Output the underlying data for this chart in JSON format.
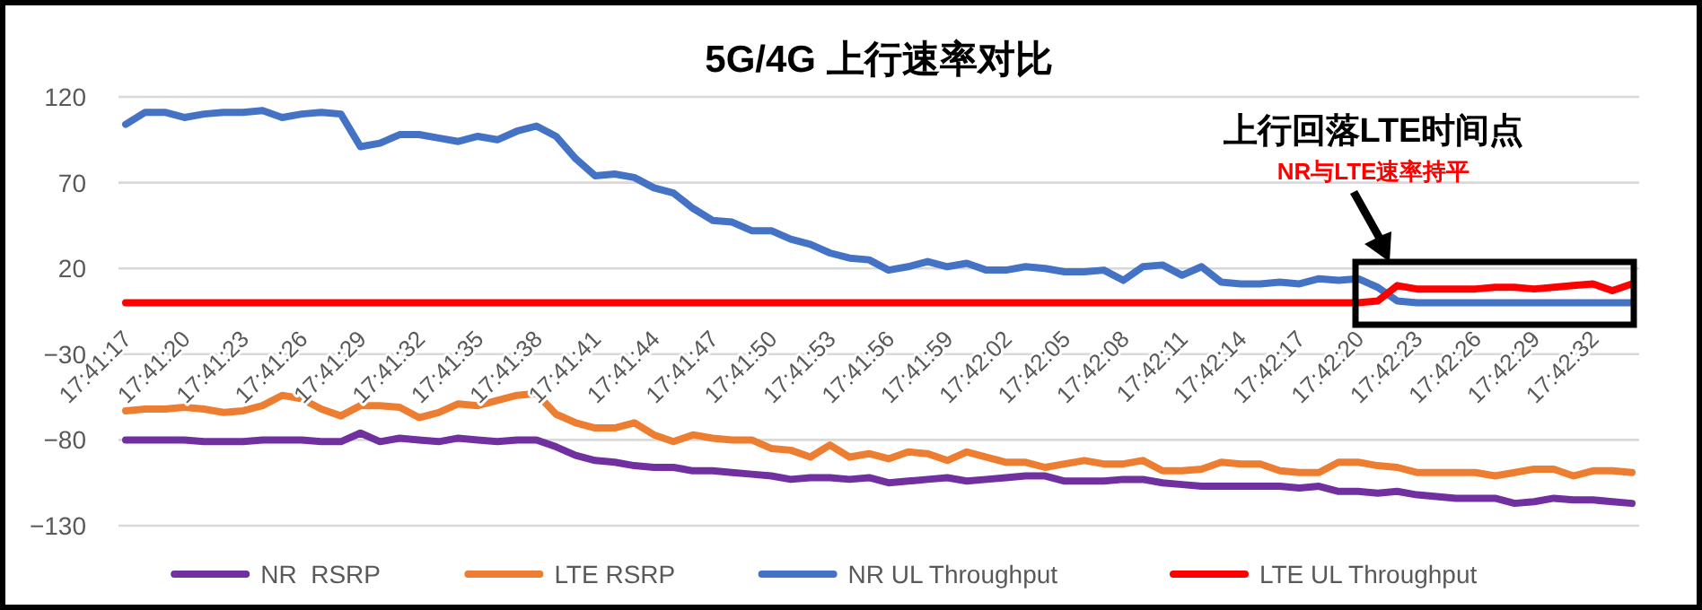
{
  "chart_data": {
    "type": "line",
    "title": "5G/4G 上行速率对比",
    "categories": [
      "17:41:17",
      null,
      null,
      "17:41:20",
      null,
      null,
      "17:41:23",
      null,
      null,
      "17:41:26",
      null,
      null,
      "17:41:29",
      null,
      null,
      "17:41:32",
      null,
      null,
      "17:41:35",
      null,
      null,
      "17:41:38",
      null,
      null,
      "17:41:41",
      null,
      null,
      "17:41:44",
      null,
      null,
      "17:41:47",
      null,
      null,
      "17:41:50",
      null,
      null,
      "17:41:53",
      null,
      null,
      "17:41:56",
      null,
      null,
      "17:41:59",
      null,
      null,
      "17:42:02",
      null,
      null,
      "17:42:05",
      null,
      null,
      "17:42:08",
      null,
      null,
      "17:42:11",
      null,
      null,
      "17:42:14",
      null,
      null,
      "17:42:17",
      null,
      null,
      "17:42:20",
      null,
      null,
      "17:42:23",
      null,
      null,
      "17:42:26",
      null,
      null,
      "17:42:29",
      null,
      null,
      "17:42:32",
      null,
      null
    ],
    "series": [
      {
        "name": "NR  RSRP",
        "color": "#7030a0",
        "values": [
          -80,
          -80,
          -80,
          -80,
          -81,
          -81,
          -81,
          -80,
          -80,
          -80,
          -81,
          -81,
          -76,
          -81,
          -79,
          -80,
          -81,
          -79,
          -80,
          -81,
          -80,
          -80,
          -84,
          -89,
          -92,
          -93,
          -95,
          -96,
          -96,
          -98,
          -98,
          -99,
          -100,
          -101,
          -103,
          -102,
          -102,
          -103,
          -102,
          -105,
          -104,
          -103,
          -102,
          -104,
          -103,
          -102,
          -101,
          -101,
          -104,
          -104,
          -104,
          -103,
          -103,
          -105,
          -106,
          -107,
          -107,
          -107,
          -107,
          -107,
          -108,
          -107,
          -110,
          -110,
          -111,
          -110,
          -112,
          -113,
          -114,
          -114,
          -114,
          -117,
          -116,
          -114,
          -115,
          -115,
          -116,
          -117
        ]
      },
      {
        "name": "LTE RSRP",
        "color": "#ed7d31",
        "values": [
          -63,
          -62,
          -62,
          -61,
          -62,
          -64,
          -63,
          -60,
          -54,
          -56,
          -62,
          -66,
          -60,
          -60,
          -61,
          -67,
          -64,
          -59,
          -60,
          -57,
          -54,
          -53,
          -65,
          -70,
          -73,
          -73,
          -70,
          -77,
          -81,
          -77,
          -79,
          -80,
          -80,
          -85,
          -86,
          -90,
          -83,
          -90,
          -88,
          -91,
          -87,
          -88,
          -92,
          -87,
          -90,
          -93,
          -93,
          -96,
          -94,
          -92,
          -94,
          -94,
          -92,
          -98,
          -98,
          -97,
          -93,
          -94,
          -94,
          -98,
          -99,
          -99,
          -93,
          -93,
          -95,
          -96,
          -99,
          -99,
          -99,
          -99,
          -101,
          -99,
          -97,
          -97,
          -101,
          -98,
          -98,
          -99
        ]
      },
      {
        "name": "NR UL Throughput",
        "color": "#4472c4",
        "values": [
          104,
          111,
          111,
          108,
          110,
          111,
          111,
          112,
          108,
          110,
          111,
          110,
          91,
          93,
          98,
          98,
          96,
          94,
          97,
          95,
          100,
          103,
          97,
          84,
          74,
          75,
          73,
          67,
          64,
          55,
          48,
          47,
          42,
          42,
          37,
          34,
          29,
          26,
          25,
          19,
          21,
          24,
          21,
          23,
          19,
          19,
          21,
          20,
          18,
          18,
          19,
          13,
          21,
          22,
          16,
          21,
          12,
          11,
          11,
          12,
          11,
          14,
          13,
          14,
          9,
          1,
          0,
          0,
          0,
          0,
          0,
          0,
          0,
          0,
          0,
          0,
          0,
          0
        ]
      },
      {
        "name": "LTE UL Throughput",
        "color": "#ff0000",
        "values": [
          0,
          0,
          0,
          0,
          0,
          0,
          0,
          0,
          0,
          0,
          0,
          0,
          0,
          0,
          0,
          0,
          0,
          0,
          0,
          0,
          0,
          0,
          0,
          0,
          0,
          0,
          0,
          0,
          0,
          0,
          0,
          0,
          0,
          0,
          0,
          0,
          0,
          0,
          0,
          0,
          0,
          0,
          0,
          0,
          0,
          0,
          0,
          0,
          0,
          0,
          0,
          0,
          0,
          0,
          0,
          0,
          0,
          0,
          0,
          0,
          0,
          0,
          0,
          0,
          1,
          10,
          8,
          8,
          8,
          8,
          9,
          9,
          8,
          9,
          10,
          11,
          7,
          11
        ]
      }
    ],
    "ylim": [
      -130,
      120
    ],
    "yticks": [
      120,
      70,
      20,
      -30,
      -80,
      -130
    ],
    "grid": "y",
    "legend": "bottom",
    "marker": "none",
    "line_style": "solid",
    "annotations": [
      "上行回落LTE时间点",
      "NR与LTE速率持平"
    ]
  }
}
